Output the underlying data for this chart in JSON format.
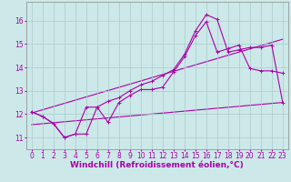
{
  "background_color": "#cce8e8",
  "line_color": "#aa00aa",
  "grid_color": "#aacccc",
  "xlabel": "Windchill (Refroidissement éolien,°C)",
  "xlabel_fontsize": 6.5,
  "tick_fontsize": 5.5,
  "xlim": [
    -0.5,
    23.5
  ],
  "ylim": [
    10.5,
    16.8
  ],
  "yticks": [
    11,
    12,
    13,
    14,
    15,
    16
  ],
  "xticks": [
    0,
    1,
    2,
    3,
    4,
    5,
    6,
    7,
    8,
    9,
    10,
    11,
    12,
    13,
    14,
    15,
    16,
    17,
    18,
    19,
    20,
    21,
    22,
    23
  ],
  "series_marked_1": {
    "x": [
      0,
      1,
      2,
      3,
      4,
      5,
      6,
      7,
      8,
      9,
      10,
      11,
      12,
      13,
      14,
      15,
      16,
      17,
      18,
      19,
      20,
      21,
      22,
      23
    ],
    "y": [
      12.1,
      11.9,
      11.6,
      11.0,
      11.15,
      11.15,
      12.3,
      11.65,
      12.5,
      12.8,
      13.05,
      13.05,
      13.15,
      13.8,
      14.45,
      15.35,
      15.95,
      14.65,
      14.8,
      14.95,
      13.95,
      13.85,
      13.85,
      13.75
    ]
  },
  "series_marked_2": {
    "x": [
      0,
      1,
      2,
      3,
      4,
      5,
      6,
      7,
      8,
      9,
      10,
      11,
      12,
      13,
      14,
      15,
      16,
      17,
      18,
      19,
      20,
      21,
      22,
      23
    ],
    "y": [
      12.1,
      11.9,
      11.6,
      11.0,
      11.15,
      12.3,
      12.3,
      12.55,
      12.7,
      13.0,
      13.25,
      13.4,
      13.65,
      13.9,
      14.55,
      15.55,
      16.25,
      16.05,
      14.65,
      14.75,
      14.85,
      14.85,
      14.95,
      12.5
    ]
  },
  "trend_low": {
    "x": [
      0,
      23
    ],
    "y": [
      11.55,
      12.5
    ]
  },
  "trend_high": {
    "x": [
      0,
      23
    ],
    "y": [
      12.05,
      15.2
    ]
  }
}
